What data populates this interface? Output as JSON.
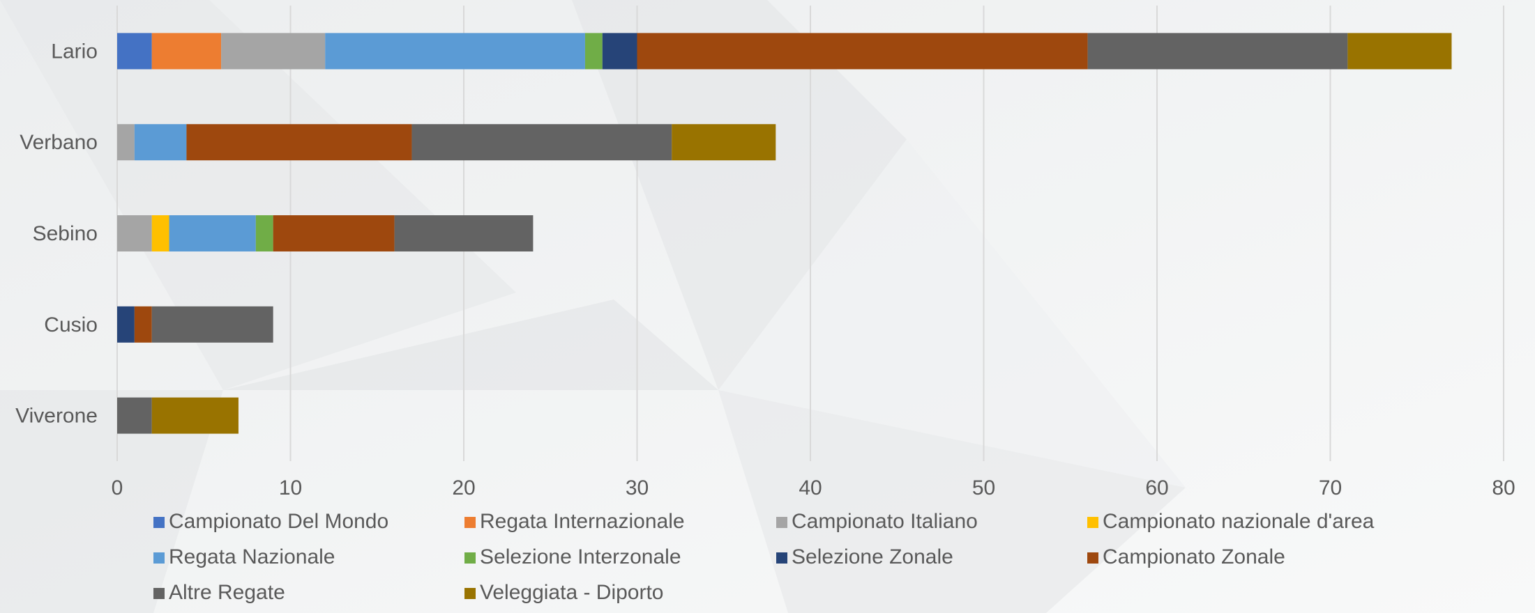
{
  "chart_data": {
    "type": "bar",
    "orientation": "horizontal",
    "stacked": true,
    "categories": [
      "Lario",
      "Verbano",
      "Sebino",
      "Cusio",
      "Viverone"
    ],
    "xlim": [
      0,
      80
    ],
    "xticks": [
      0,
      10,
      20,
      30,
      40,
      50,
      60,
      70,
      80
    ],
    "grid": true,
    "legend_position": "bottom",
    "series": [
      {
        "name": "Campionato Del Mondo",
        "color": "#4472C4",
        "values": [
          2,
          0,
          0,
          0,
          0
        ]
      },
      {
        "name": "Regata Internazionale",
        "color": "#ED7D31",
        "values": [
          4,
          0,
          0,
          0,
          0
        ]
      },
      {
        "name": "Campionato Italiano",
        "color": "#A5A5A5",
        "values": [
          6,
          1,
          2,
          0,
          0
        ]
      },
      {
        "name": "Campionato nazionale d'area",
        "color": "#FFC000",
        "values": [
          0,
          0,
          1,
          0,
          0
        ]
      },
      {
        "name": "Regata Nazionale",
        "color": "#5B9BD5",
        "values": [
          15,
          3,
          5,
          0,
          0
        ]
      },
      {
        "name": "Selezione Interzonale",
        "color": "#70AD47",
        "values": [
          1,
          0,
          1,
          0,
          0
        ]
      },
      {
        "name": "Selezione Zonale",
        "color": "#264478",
        "values": [
          2,
          0,
          0,
          1,
          0
        ]
      },
      {
        "name": "Campionato Zonale",
        "color": "#9E480E",
        "values": [
          26,
          13,
          7,
          1,
          0
        ]
      },
      {
        "name": "Altre Regate",
        "color": "#636363",
        "values": [
          15,
          15,
          8,
          7,
          2
        ]
      },
      {
        "name": "Veleggiata - Diporto",
        "color": "#997300",
        "values": [
          6,
          6,
          0,
          0,
          5
        ]
      }
    ]
  }
}
